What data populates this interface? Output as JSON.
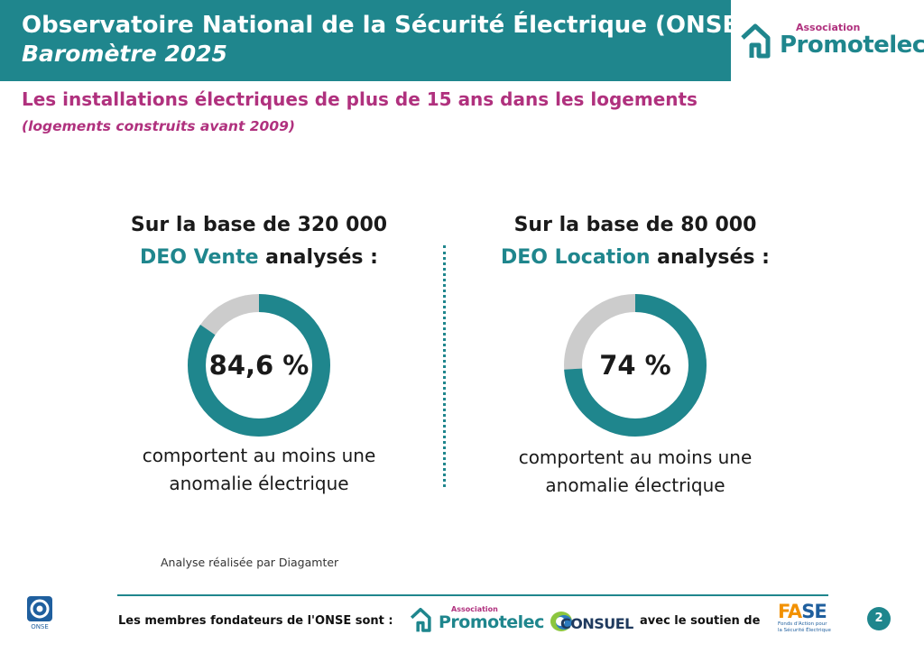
{
  "header": {
    "title": "Observatoire National de la Sécurité Électrique (ONSE)",
    "subtitle": "Baromètre 2025"
  },
  "top_logo": {
    "small": "Association",
    "big": "Promotelec"
  },
  "section": {
    "title": "Les installations électriques de plus de 15 ans dans les logements",
    "subtitle": "(logements construits avant 2009)"
  },
  "columns": [
    {
      "line1": "Sur la base de 320 000",
      "highlight": "DEO Vente",
      "rest": " analysés :",
      "value_label": "84,6 %",
      "percent": 84.6,
      "caption_line1": "comportent au moins une",
      "caption_line2": "anomalie électrique"
    },
    {
      "line1": "Sur la base de 80 000",
      "highlight": "DEO Location",
      "rest": " analysés :",
      "value_label": "74 %",
      "percent": 74,
      "caption_line1": "comportent au moins une",
      "caption_line2": "anomalie électrique"
    }
  ],
  "note": "Analyse réalisée par Diagamter",
  "footer": {
    "lead": "Les membres fondateurs de l'ONSE sont :",
    "promotelec_small": "Association",
    "promotelec_big": "Promotelec",
    "consuel": "CONSUEL",
    "support": "avec le soutien de",
    "onse_label": "ONSE",
    "fase_a": "FA",
    "fase_b": "SE",
    "fase_tag_1": "Fonds d'Action pour",
    "fase_tag_2": "la Sécurité Électrique",
    "page": "2"
  },
  "colors": {
    "teal": "#1f868d",
    "magenta": "#b0317e",
    "track": "#cccccc"
  }
}
